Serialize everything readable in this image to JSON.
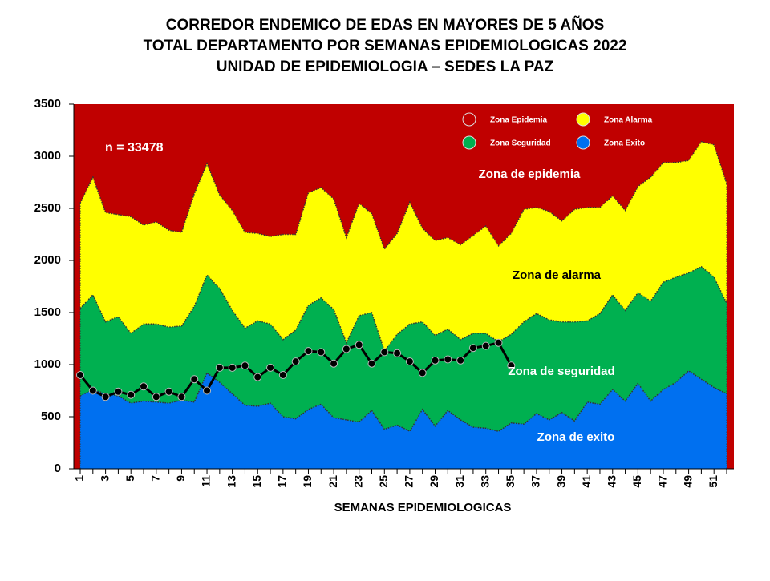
{
  "chart_data": {
    "type": "area",
    "title": [
      "CORREDOR ENDEMICO DE EDAS EN MAYORES DE 5 AÑOS",
      "TOTAL DEPARTAMENTO POR SEMANAS EPIDEMIOLOGICAS 2022",
      "UNIDAD DE EPIDEMIOLOGIA – SEDES LA PAZ"
    ],
    "x_label": "SEMANAS EPIDEMIOLOGICAS",
    "annotation": "n = 33478",
    "zone_labels": [
      "Zona de epidemia",
      "Zona de alarma",
      "Zona de  seguridad",
      "Zona de exito"
    ],
    "categories": [
      "1",
      null,
      "3",
      null,
      "5",
      null,
      "7",
      null,
      "9",
      null,
      "11",
      null,
      "13",
      null,
      "15",
      null,
      "17",
      null,
      "19",
      null,
      "21",
      null,
      "23",
      null,
      "25",
      null,
      "27",
      null,
      "29",
      null,
      "31",
      null,
      "33",
      null,
      "35",
      null,
      "37",
      null,
      "39",
      null,
      "41",
      null,
      "43",
      null,
      "45",
      null,
      "47",
      null,
      "49",
      null,
      "51",
      null
    ],
    "ylim": [
      0,
      3500
    ],
    "yticks": [
      0,
      500,
      1000,
      1500,
      2000,
      2500,
      3000,
      3500
    ],
    "epidemic_zone": {
      "name": "Zona Epidemia",
      "color": "#c00000"
    },
    "series": [
      {
        "name": "Zona Exito",
        "color": "#0070f0",
        "values": [
          700,
          760,
          720,
          700,
          630,
          650,
          640,
          630,
          660,
          640,
          920,
          830,
          720,
          610,
          600,
          630,
          500,
          480,
          570,
          620,
          490,
          470,
          450,
          560,
          380,
          420,
          360,
          570,
          410,
          560,
          470,
          400,
          390,
          360,
          440,
          430,
          530,
          470,
          540,
          460,
          640,
          620,
          760,
          650,
          820,
          650,
          760,
          830,
          940,
          860,
          780,
          720
        ]
      },
      {
        "name": "Zona Seguridad",
        "color": "#00b050",
        "values": [
          1540,
          1670,
          1410,
          1460,
          1300,
          1390,
          1390,
          1360,
          1370,
          1560,
          1860,
          1730,
          1520,
          1350,
          1420,
          1390,
          1240,
          1330,
          1570,
          1640,
          1530,
          1210,
          1470,
          1500,
          1130,
          1290,
          1390,
          1410,
          1280,
          1340,
          1240,
          1300,
          1300,
          1220,
          1290,
          1410,
          1490,
          1430,
          1410,
          1410,
          1420,
          1490,
          1670,
          1520,
          1690,
          1610,
          1790,
          1840,
          1880,
          1940,
          1840,
          1590
        ]
      },
      {
        "name": "Zona Alarma",
        "color": "#ffff00",
        "values": [
          2550,
          2800,
          2460,
          2440,
          2420,
          2340,
          2370,
          2290,
          2270,
          2640,
          2930,
          2630,
          2480,
          2270,
          2260,
          2230,
          2250,
          2250,
          2650,
          2700,
          2590,
          2220,
          2550,
          2450,
          2110,
          2260,
          2560,
          2310,
          2190,
          2220,
          2150,
          2240,
          2330,
          2140,
          2260,
          2490,
          2510,
          2470,
          2380,
          2490,
          2510,
          2510,
          2620,
          2480,
          2710,
          2800,
          2940,
          2940,
          2960,
          3140,
          3110,
          2740
        ]
      }
    ],
    "cases": {
      "color": "#000000",
      "values": [
        900,
        750,
        690,
        740,
        710,
        790,
        690,
        740,
        690,
        860,
        750,
        970,
        970,
        990,
        880,
        970,
        900,
        1030,
        1130,
        1120,
        1010,
        1150,
        1190,
        1010,
        1120,
        1110,
        1030,
        920,
        1040,
        1050,
        1040,
        1160,
        1180,
        1210,
        990,
        null,
        null,
        null,
        null,
        null,
        null,
        null,
        null,
        null,
        null,
        null,
        null,
        null,
        null,
        null,
        null,
        null
      ]
    }
  }
}
